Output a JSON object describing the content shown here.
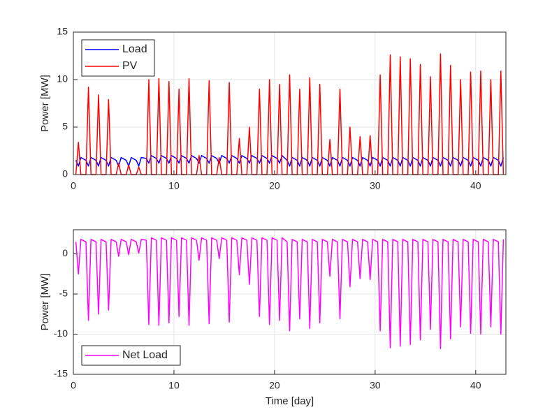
{
  "chart_data": [
    {
      "type": "line",
      "ylabel": "Power [MW]",
      "xlim": [
        0,
        43
      ],
      "xticks": [
        0,
        10,
        20,
        30,
        40
      ],
      "ylim": [
        0,
        15
      ],
      "yticks": [
        0,
        5,
        10,
        15
      ],
      "grid": true,
      "legend": "upper-left",
      "x": [
        0.25,
        0.5,
        0.75,
        1.25,
        1.5,
        1.75,
        2.25,
        2.5,
        2.75,
        3.25,
        3.5,
        3.75,
        4.25,
        4.5,
        4.75,
        5.25,
        5.5,
        5.75,
        6.25,
        6.5,
        6.75,
        7.25,
        7.5,
        7.75,
        8.25,
        8.5,
        8.75,
        9.25,
        9.5,
        9.75,
        10.25,
        10.5,
        10.75,
        11.25,
        11.5,
        11.75,
        12.25,
        12.5,
        12.75,
        13.25,
        13.5,
        13.75,
        14.25,
        14.5,
        14.75,
        15.25,
        15.5,
        15.75,
        16.25,
        16.5,
        16.75,
        17.25,
        17.5,
        17.75,
        18.25,
        18.5,
        18.75,
        19.25,
        19.5,
        19.75,
        20.25,
        20.5,
        20.75,
        21.25,
        21.5,
        21.75,
        22.25,
        22.5,
        22.75,
        23.25,
        23.5,
        23.75,
        24.25,
        24.5,
        24.75,
        25.25,
        25.5,
        25.75,
        26.25,
        26.5,
        26.75,
        27.25,
        27.5,
        27.75,
        28.25,
        28.5,
        28.75,
        29.25,
        29.5,
        29.75,
        30.25,
        30.5,
        30.75,
        31.25,
        31.5,
        31.75,
        32.25,
        32.5,
        32.75,
        33.25,
        33.5,
        33.75,
        34.25,
        34.5,
        34.75,
        35.25,
        35.5,
        35.75,
        36.25,
        36.5,
        36.75,
        37.25,
        37.5,
        37.75,
        38.25,
        38.5,
        38.75,
        39.25,
        39.5,
        39.75,
        40.25,
        40.5,
        40.75,
        41.25,
        41.5,
        41.75,
        42.25,
        42.5,
        42.75
      ],
      "series": [
        {
          "name": "Load",
          "color": "#0000ff",
          "values": [
            1.5,
            0.9,
            1.8,
            1.5,
            0.9,
            1.8,
            1.5,
            0.9,
            1.8,
            1.5,
            0.9,
            1.8,
            1.5,
            0.9,
            1.8,
            1.5,
            0.9,
            1.8,
            1.5,
            0.9,
            1.8,
            1.7,
            1.2,
            2.0,
            1.7,
            1.2,
            2.0,
            1.7,
            1.2,
            2.0,
            1.7,
            1.2,
            2.0,
            1.7,
            1.2,
            2.0,
            1.7,
            1.2,
            2.0,
            1.7,
            1.2,
            2.0,
            1.7,
            1.2,
            2.0,
            1.7,
            1.2,
            2.0,
            1.7,
            1.2,
            2.0,
            1.7,
            1.2,
            2.0,
            1.7,
            1.2,
            2.0,
            1.7,
            1.2,
            2.0,
            1.7,
            1.2,
            2.0,
            1.5,
            0.9,
            1.8,
            1.5,
            0.9,
            1.8,
            1.5,
            0.9,
            1.8,
            1.5,
            0.9,
            1.8,
            1.5,
            0.9,
            1.8,
            1.5,
            0.9,
            1.8,
            1.5,
            0.9,
            1.8,
            1.5,
            0.9,
            1.8,
            1.5,
            0.9,
            1.8,
            1.5,
            0.9,
            1.8,
            1.5,
            0.9,
            1.8,
            1.5,
            0.9,
            1.8,
            1.5,
            0.9,
            1.8,
            1.5,
            0.9,
            1.8,
            1.5,
            0.9,
            1.8,
            1.5,
            0.9,
            1.8,
            1.5,
            0.9,
            1.8,
            1.5,
            0.9,
            1.8,
            1.5,
            0.9,
            1.8,
            1.5,
            0.9,
            1.8,
            1.5,
            0.9,
            1.8,
            1.5,
            0.9,
            1.8
          ]
        },
        {
          "name": "PV",
          "color": "#ff0000",
          "values": [
            0,
            3.4,
            0,
            0,
            9.2,
            0,
            0,
            8.4,
            0,
            0,
            7.9,
            0,
            0,
            1.2,
            0,
            0,
            1.0,
            0,
            0,
            0.8,
            0,
            0,
            10.0,
            0,
            0,
            10.1,
            0,
            0,
            9.8,
            0,
            0,
            9.0,
            0,
            0,
            10.1,
            0,
            0,
            2.0,
            0,
            0,
            9.9,
            0,
            0,
            1.8,
            0,
            0,
            9.7,
            0,
            0,
            3.8,
            0,
            0,
            5.0,
            0,
            0,
            9.0,
            0,
            0,
            10.0,
            0,
            0,
            9.5,
            0,
            0,
            10.5,
            0,
            0,
            9.0,
            0,
            0,
            10.2,
            0,
            0,
            9.5,
            0,
            0,
            3.7,
            0,
            0,
            9.0,
            0,
            0,
            5.0,
            0,
            0,
            4.0,
            0,
            0,
            4.1,
            0,
            0,
            10.5,
            0,
            0,
            12.6,
            0,
            0,
            12.4,
            0,
            0,
            12.2,
            0,
            0,
            11.6,
            0,
            0,
            10.3,
            0,
            0,
            12.7,
            0,
            0,
            11.5,
            0,
            0,
            10.0,
            0,
            0,
            10.8,
            0,
            0,
            10.9,
            0,
            0,
            10.0,
            0,
            0,
            10.9,
            0
          ]
        }
      ]
    },
    {
      "type": "line",
      "ylabel": "Power [MW]",
      "xlabel": "Time [day]",
      "xlim": [
        0,
        43
      ],
      "xticks": [
        0,
        10,
        20,
        30,
        40
      ],
      "ylim": [
        -15,
        3
      ],
      "yticks": [
        -15,
        -10,
        -5,
        0
      ],
      "grid": true,
      "legend": "lower-left",
      "x": [
        0.25,
        0.5,
        0.75,
        1.25,
        1.5,
        1.75,
        2.25,
        2.5,
        2.75,
        3.25,
        3.5,
        3.75,
        4.25,
        4.5,
        4.75,
        5.25,
        5.5,
        5.75,
        6.25,
        6.5,
        6.75,
        7.25,
        7.5,
        7.75,
        8.25,
        8.5,
        8.75,
        9.25,
        9.5,
        9.75,
        10.25,
        10.5,
        10.75,
        11.25,
        11.5,
        11.75,
        12.25,
        12.5,
        12.75,
        13.25,
        13.5,
        13.75,
        14.25,
        14.5,
        14.75,
        15.25,
        15.5,
        15.75,
        16.25,
        16.5,
        16.75,
        17.25,
        17.5,
        17.75,
        18.25,
        18.5,
        18.75,
        19.25,
        19.5,
        19.75,
        20.25,
        20.5,
        20.75,
        21.25,
        21.5,
        21.75,
        22.25,
        22.5,
        22.75,
        23.25,
        23.5,
        23.75,
        24.25,
        24.5,
        24.75,
        25.25,
        25.5,
        25.75,
        26.25,
        26.5,
        26.75,
        27.25,
        27.5,
        27.75,
        28.25,
        28.5,
        28.75,
        29.25,
        29.5,
        29.75,
        30.25,
        30.5,
        30.75,
        31.25,
        31.5,
        31.75,
        32.25,
        32.5,
        32.75,
        33.25,
        33.5,
        33.75,
        34.25,
        34.5,
        34.75,
        35.25,
        35.5,
        35.75,
        36.25,
        36.5,
        36.75,
        37.25,
        37.5,
        37.75,
        38.25,
        38.5,
        38.75,
        39.25,
        39.5,
        39.75,
        40.25,
        40.5,
        40.75,
        41.25,
        41.5,
        41.75,
        42.25,
        42.5,
        42.75
      ],
      "series": [
        {
          "name": "Net Load",
          "color": "#ff00ff",
          "values": [
            1.5,
            -2.5,
            1.8,
            1.5,
            -8.3,
            1.8,
            1.5,
            -7.5,
            1.8,
            1.5,
            -7.0,
            1.8,
            1.5,
            -0.3,
            1.8,
            1.5,
            -0.1,
            1.8,
            1.5,
            0.1,
            1.8,
            1.7,
            -8.8,
            2.0,
            1.7,
            -8.9,
            2.0,
            1.7,
            -8.6,
            2.0,
            1.7,
            -7.8,
            2.0,
            1.7,
            -8.9,
            2.0,
            1.7,
            -0.8,
            2.0,
            1.7,
            -8.7,
            2.0,
            1.7,
            -0.6,
            2.0,
            1.7,
            -8.5,
            2.0,
            1.7,
            -2.6,
            2.0,
            1.7,
            -3.8,
            2.0,
            1.7,
            -7.8,
            2.0,
            1.7,
            -8.8,
            2.0,
            1.7,
            -8.3,
            2.0,
            1.5,
            -9.6,
            1.8,
            1.5,
            -8.1,
            1.8,
            1.5,
            -9.3,
            1.8,
            1.5,
            -8.6,
            1.8,
            1.5,
            -2.8,
            1.8,
            1.5,
            -8.1,
            1.8,
            1.5,
            -4.1,
            1.8,
            1.5,
            -3.1,
            1.8,
            1.5,
            -3.2,
            1.8,
            1.5,
            -9.6,
            1.8,
            1.5,
            -11.7,
            1.8,
            1.5,
            -11.5,
            1.8,
            1.5,
            -11.3,
            1.8,
            1.5,
            -10.7,
            1.8,
            1.5,
            -9.4,
            1.8,
            1.5,
            -11.8,
            1.8,
            1.5,
            -10.6,
            1.8,
            1.5,
            -9.1,
            1.8,
            1.5,
            -9.9,
            1.8,
            1.5,
            -10.0,
            1.8,
            1.5,
            -9.1,
            1.8,
            1.5,
            -10.0,
            1.8
          ]
        }
      ]
    }
  ]
}
